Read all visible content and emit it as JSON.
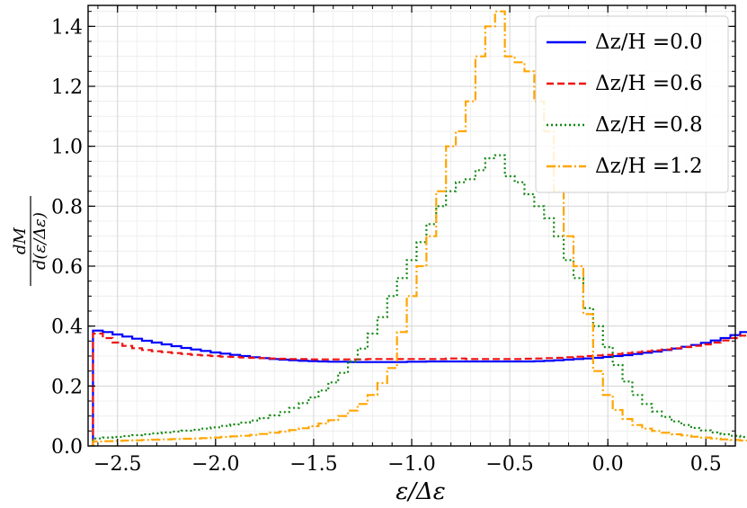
{
  "chart_data": {
    "type": "line",
    "title": "",
    "xlabel": "ε/Δε",
    "ylabel": "dM / d(ε/Δε)",
    "ylabel_numerator": "dM",
    "ylabel_denominator": "d(ε/Δε)",
    "xlim": [
      -2.65,
      0.65
    ],
    "ylim": [
      0.0,
      1.47
    ],
    "xticks": [
      -2.5,
      -2.0,
      -1.5,
      -1.0,
      -0.5,
      0.0,
      0.5
    ],
    "xtick_labels": [
      "−2.5",
      "−2.0",
      "−1.5",
      "−1.0",
      "−0.5",
      "0.0",
      "0.5"
    ],
    "yticks": [
      0.0,
      0.2,
      0.4,
      0.6,
      0.8,
      1.0,
      1.2,
      1.4
    ],
    "ytick_labels": [
      "0.0",
      "0.2",
      "0.4",
      "0.6",
      "0.8",
      "1.0",
      "1.2",
      "1.4"
    ],
    "grid": true,
    "legend_position": "top-right",
    "bin_edges_start": -2.625,
    "bin_width": 0.05,
    "series": [
      {
        "name": "Δz/H =0.0",
        "color": "#0000ff",
        "style": "solid",
        "values": [
          0.385,
          0.38,
          0.372,
          0.365,
          0.358,
          0.351,
          0.345,
          0.339,
          0.333,
          0.327,
          0.322,
          0.317,
          0.312,
          0.308,
          0.304,
          0.3,
          0.296,
          0.293,
          0.29,
          0.288,
          0.286,
          0.284,
          0.283,
          0.282,
          0.281,
          0.281,
          0.28,
          0.28,
          0.28,
          0.28,
          0.28,
          0.28,
          0.281,
          0.281,
          0.282,
          0.282,
          0.282,
          0.282,
          0.282,
          0.282,
          0.282,
          0.282,
          0.282,
          0.282,
          0.282,
          0.283,
          0.284,
          0.286,
          0.288,
          0.29,
          0.292,
          0.294,
          0.297,
          0.3,
          0.303,
          0.307,
          0.311,
          0.315,
          0.32,
          0.325,
          0.331,
          0.337,
          0.344,
          0.352,
          0.36,
          0.37,
          0.38,
          0.392
        ]
      },
      {
        "name": "Δz/H =0.6",
        "color": "#ee1111",
        "style": "dashed",
        "values": [
          0.375,
          0.36,
          0.345,
          0.334,
          0.326,
          0.32,
          0.316,
          0.313,
          0.31,
          0.307,
          0.304,
          0.302,
          0.3,
          0.298,
          0.297,
          0.295,
          0.294,
          0.293,
          0.292,
          0.291,
          0.29,
          0.29,
          0.289,
          0.289,
          0.289,
          0.289,
          0.289,
          0.289,
          0.29,
          0.29,
          0.29,
          0.29,
          0.29,
          0.29,
          0.29,
          0.29,
          0.292,
          0.292,
          0.29,
          0.29,
          0.29,
          0.29,
          0.29,
          0.29,
          0.291,
          0.292,
          0.293,
          0.294,
          0.296,
          0.298,
          0.3,
          0.302,
          0.304,
          0.307,
          0.31,
          0.313,
          0.316,
          0.319,
          0.322,
          0.326,
          0.33,
          0.334,
          0.339,
          0.345,
          0.352,
          0.36,
          0.368,
          0.38
        ]
      },
      {
        "name": "Δz/H =0.8",
        "color": "#118811",
        "style": "dotted",
        "values": [
          0.025,
          0.028,
          0.03,
          0.033,
          0.036,
          0.039,
          0.042,
          0.045,
          0.048,
          0.051,
          0.054,
          0.058,
          0.062,
          0.067,
          0.072,
          0.078,
          0.085,
          0.093,
          0.102,
          0.113,
          0.127,
          0.143,
          0.162,
          0.185,
          0.212,
          0.244,
          0.282,
          0.325,
          0.375,
          0.43,
          0.5,
          0.56,
          0.62,
          0.68,
          0.74,
          0.8,
          0.85,
          0.88,
          0.89,
          0.92,
          0.96,
          0.97,
          0.9,
          0.88,
          0.84,
          0.8,
          0.76,
          0.7,
          0.62,
          0.56,
          0.46,
          0.4,
          0.33,
          0.27,
          0.215,
          0.17,
          0.14,
          0.115,
          0.097,
          0.082,
          0.07,
          0.06,
          0.052,
          0.045,
          0.039,
          0.034,
          0.03,
          0.026
        ]
      },
      {
        "name": "Δz/H =1.2",
        "color": "#ffa500",
        "style": "dashdot",
        "values": [
          0.015,
          0.016,
          0.017,
          0.018,
          0.019,
          0.02,
          0.021,
          0.022,
          0.023,
          0.024,
          0.025,
          0.026,
          0.028,
          0.03,
          0.032,
          0.034,
          0.037,
          0.04,
          0.044,
          0.048,
          0.053,
          0.059,
          0.066,
          0.075,
          0.086,
          0.1,
          0.118,
          0.14,
          0.17,
          0.21,
          0.26,
          0.38,
          0.5,
          0.6,
          0.7,
          0.85,
          1.0,
          1.05,
          1.15,
          1.3,
          1.4,
          1.45,
          1.3,
          1.28,
          1.25,
          1.15,
          1.05,
          0.85,
          0.7,
          0.6,
          0.44,
          0.25,
          0.17,
          0.12,
          0.09,
          0.07,
          0.058,
          0.05,
          0.044,
          0.039,
          0.035,
          0.031,
          0.028,
          0.025,
          0.022,
          0.02,
          0.018,
          0.015
        ]
      }
    ]
  }
}
